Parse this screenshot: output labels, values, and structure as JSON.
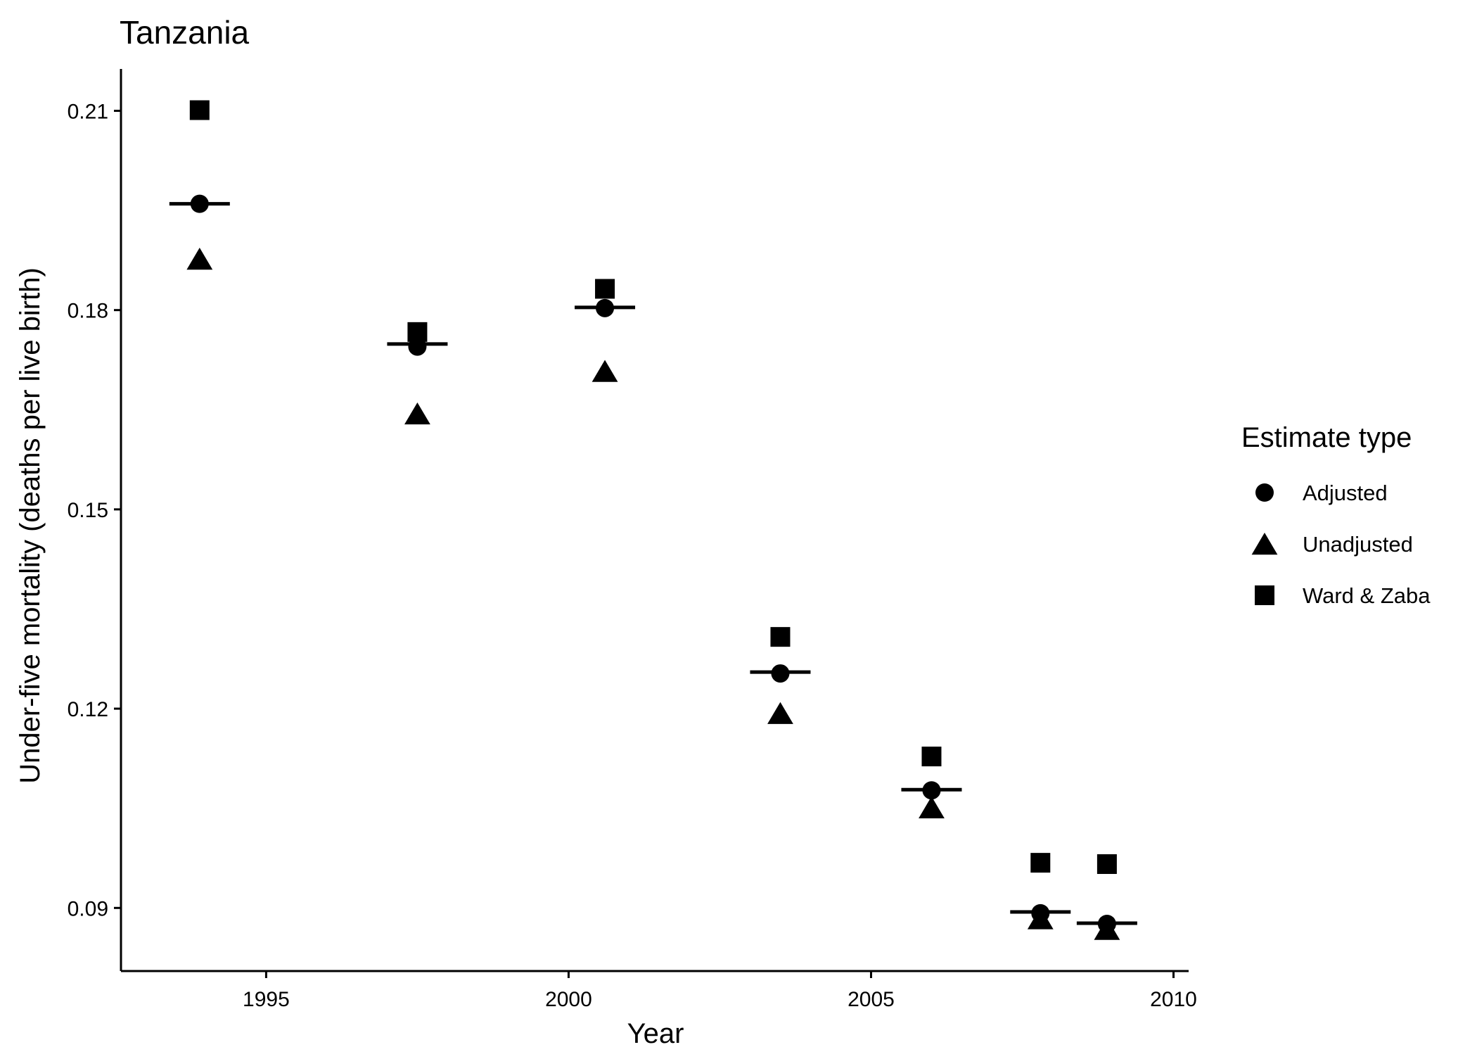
{
  "chart_data": {
    "type": "scatter",
    "title": "Tanzania",
    "xlabel": "Year",
    "ylabel": "Under-five mortality (deaths per live birth)",
    "xlim": [
      1992.6,
      2010.25
    ],
    "ylim": [
      0.0805,
      0.2163
    ],
    "x_ticks": [
      1995,
      2000,
      2005,
      2010
    ],
    "x_tick_labels": [
      "1995",
      "2000",
      "2005",
      "2010"
    ],
    "y_ticks": [
      0.09,
      0.12,
      0.15,
      0.18,
      0.21
    ],
    "y_tick_labels": [
      "0.09",
      "0.12",
      "0.15",
      "0.18",
      "0.21"
    ],
    "grid": false,
    "legend": {
      "title": "Estimate type",
      "position": "right",
      "entries": [
        {
          "name": "Adjusted",
          "marker": "circle"
        },
        {
          "name": "Unadjusted",
          "marker": "triangle"
        },
        {
          "name": "Ward & Zaba",
          "marker": "square"
        }
      ]
    },
    "series": [
      {
        "name": "Adjusted",
        "marker": "circle",
        "x": [
          1993.9,
          1997.5,
          2000.6,
          2003.5,
          2006.0,
          2007.8,
          2008.9
        ],
        "y": [
          0.196,
          0.1745,
          0.1803,
          0.1253,
          0.1077,
          0.0892,
          0.0876
        ]
      },
      {
        "name": "Unadjusted",
        "marker": "triangle",
        "x": [
          1993.9,
          1997.5,
          2000.6,
          2003.5,
          2006.0,
          2007.8,
          2008.9
        ],
        "y": [
          0.1877,
          0.1644,
          0.1708,
          0.1193,
          0.1051,
          0.0884,
          0.0868
        ]
      },
      {
        "name": "Ward & Zaba",
        "marker": "square",
        "x": [
          1993.9,
          1997.5,
          2000.6,
          2003.5,
          2006.0,
          2007.8,
          2008.9
        ],
        "y": [
          0.2101,
          0.1767,
          0.1832,
          0.1308,
          0.1128,
          0.0968,
          0.0966
        ]
      }
    ],
    "reference_segments": {
      "x": [
        1993.9,
        1997.5,
        2000.6,
        2003.5,
        2006.0,
        2007.8,
        2008.9
      ],
      "y": [
        0.196,
        0.1749,
        0.1804,
        0.1255,
        0.1078,
        0.0894,
        0.0877
      ],
      "half_width_years": 0.5
    },
    "colors": {
      "markers": "#000000",
      "axes": "#000000",
      "background": "#ffffff"
    }
  }
}
